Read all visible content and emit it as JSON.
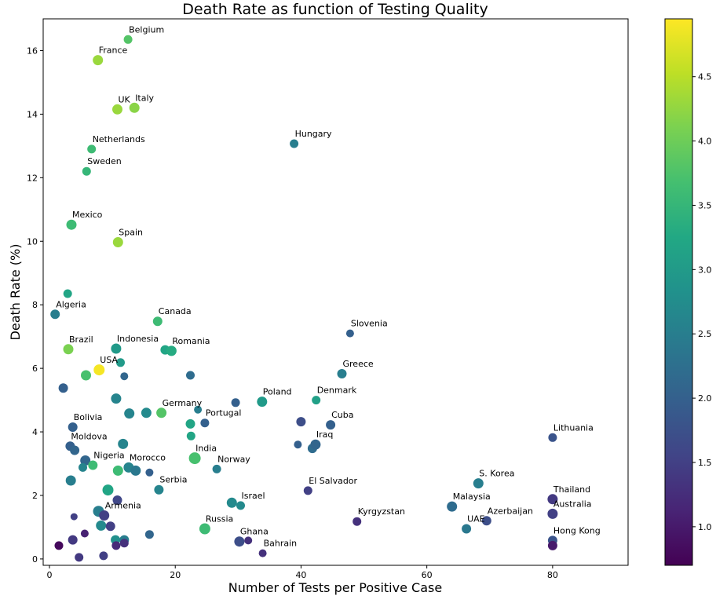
{
  "chart_data": {
    "type": "scatter",
    "title": "Death Rate as function of Testing Quality",
    "xlabel": "Number of Tests per Positive Case",
    "ylabel": "Death Rate (%)",
    "xlim": [
      -1,
      92
    ],
    "ylim": [
      -0.2,
      17
    ],
    "xticks": [
      0,
      20,
      40,
      60,
      80
    ],
    "yticks": [
      0,
      2,
      4,
      6,
      8,
      10,
      12,
      14,
      16
    ],
    "colorbar": {
      "colormap": "viridis",
      "range": [
        0.7,
        4.95
      ],
      "ticks": [
        "1.0",
        "1.5",
        "2.0",
        "2.5",
        "3.0",
        "3.5",
        "4.0",
        "4.5"
      ],
      "tick_values": [
        1.0,
        1.5,
        2.0,
        2.5,
        3.0,
        3.5,
        4.0,
        4.5
      ]
    },
    "grid": false,
    "points": [
      {
        "x": 12.5,
        "y": 16.35,
        "c": 3.8,
        "s": 5.5,
        "label": "Belgium"
      },
      {
        "x": 7.7,
        "y": 15.7,
        "c": 4.3,
        "s": 6.5,
        "label": "France"
      },
      {
        "x": 10.8,
        "y": 14.15,
        "c": 4.3,
        "s": 6.5,
        "label": "UK"
      },
      {
        "x": 13.5,
        "y": 14.2,
        "c": 4.2,
        "s": 6.5,
        "label": "Italy"
      },
      {
        "x": 6.7,
        "y": 12.9,
        "c": 3.6,
        "s": 5.5,
        "label": "Netherlands"
      },
      {
        "x": 5.9,
        "y": 12.2,
        "c": 3.5,
        "s": 5.5,
        "label": "Sweden"
      },
      {
        "x": 38.9,
        "y": 13.07,
        "c": 2.5,
        "s": 5.5,
        "label": "Hungary"
      },
      {
        "x": 3.5,
        "y": 10.52,
        "c": 3.6,
        "s": 6.5,
        "label": "Mexico"
      },
      {
        "x": 10.9,
        "y": 9.97,
        "c": 4.3,
        "s": 6.5,
        "label": "Spain"
      },
      {
        "x": 2.9,
        "y": 8.35,
        "c": 3.2,
        "s": 5.5,
        "label": ""
      },
      {
        "x": 0.9,
        "y": 7.7,
        "c": 2.5,
        "s": 6,
        "label": "Algeria"
      },
      {
        "x": 17.2,
        "y": 7.48,
        "c": 3.6,
        "s": 6,
        "label": "Canada"
      },
      {
        "x": 47.8,
        "y": 7.1,
        "c": 2.0,
        "s": 5,
        "label": "Slovenia"
      },
      {
        "x": 3.0,
        "y": 6.6,
        "c": 4.1,
        "s": 6.5,
        "label": "Brazil"
      },
      {
        "x": 10.6,
        "y": 6.62,
        "c": 3.0,
        "s": 6.5,
        "label": "Indonesia"
      },
      {
        "x": 18.4,
        "y": 6.58,
        "c": 3.2,
        "s": 6,
        "label": ""
      },
      {
        "x": 19.4,
        "y": 6.55,
        "c": 3.3,
        "s": 6.5,
        "label": "Romania"
      },
      {
        "x": 11.3,
        "y": 6.18,
        "c": 3.0,
        "s": 5.5,
        "label": ""
      },
      {
        "x": 7.9,
        "y": 5.95,
        "c": 4.9,
        "s": 7,
        "label": "USA"
      },
      {
        "x": 5.8,
        "y": 5.78,
        "c": 3.7,
        "s": 6.5,
        "label": ""
      },
      {
        "x": 11.9,
        "y": 5.75,
        "c": 2.1,
        "s": 5,
        "label": ""
      },
      {
        "x": 22.4,
        "y": 5.78,
        "c": 2.2,
        "s": 5.5,
        "label": ""
      },
      {
        "x": 46.5,
        "y": 5.83,
        "c": 2.5,
        "s": 6,
        "label": "Greece"
      },
      {
        "x": 2.2,
        "y": 5.38,
        "c": 2.0,
        "s": 6,
        "label": ""
      },
      {
        "x": 10.6,
        "y": 5.05,
        "c": 2.6,
        "s": 6.5,
        "label": ""
      },
      {
        "x": 29.6,
        "y": 4.92,
        "c": 2.0,
        "s": 5.5,
        "label": ""
      },
      {
        "x": 33.8,
        "y": 4.95,
        "c": 3.0,
        "s": 6.5,
        "label": "Poland"
      },
      {
        "x": 42.4,
        "y": 5.0,
        "c": 3.1,
        "s": 5.5,
        "label": "Denmark"
      },
      {
        "x": 23.6,
        "y": 4.7,
        "c": 2.5,
        "s": 5,
        "label": ""
      },
      {
        "x": 12.7,
        "y": 4.58,
        "c": 2.6,
        "s": 6.5,
        "label": ""
      },
      {
        "x": 15.4,
        "y": 4.6,
        "c": 2.7,
        "s": 6.5,
        "label": ""
      },
      {
        "x": 17.8,
        "y": 4.6,
        "c": 3.8,
        "s": 6.5,
        "label": "Germany"
      },
      {
        "x": 22.4,
        "y": 4.25,
        "c": 3.2,
        "s": 6,
        "label": ""
      },
      {
        "x": 24.7,
        "y": 4.28,
        "c": 2.0,
        "s": 5.5,
        "label": "Portugal"
      },
      {
        "x": 3.7,
        "y": 4.15,
        "c": 2.0,
        "s": 6,
        "label": "Bolivia"
      },
      {
        "x": 40.0,
        "y": 4.32,
        "c": 1.7,
        "s": 6,
        "label": ""
      },
      {
        "x": 44.7,
        "y": 4.22,
        "c": 2.0,
        "s": 6,
        "label": "Cuba"
      },
      {
        "x": 22.5,
        "y": 3.87,
        "c": 3.2,
        "s": 5.5,
        "label": ""
      },
      {
        "x": 3.3,
        "y": 3.55,
        "c": 2.0,
        "s": 6,
        "label": "Moldova"
      },
      {
        "x": 4.0,
        "y": 3.42,
        "c": 2.1,
        "s": 6,
        "label": ""
      },
      {
        "x": 11.7,
        "y": 3.62,
        "c": 2.6,
        "s": 6.5,
        "label": ""
      },
      {
        "x": 39.5,
        "y": 3.6,
        "c": 2.0,
        "s": 5,
        "label": ""
      },
      {
        "x": 41.8,
        "y": 3.48,
        "c": 2.2,
        "s": 6,
        "label": ""
      },
      {
        "x": 42.3,
        "y": 3.6,
        "c": 2.1,
        "s": 6.5,
        "label": "Iraq"
      },
      {
        "x": 80.0,
        "y": 3.82,
        "c": 1.8,
        "s": 5.5,
        "label": "Lithuania"
      },
      {
        "x": 5.7,
        "y": 3.1,
        "c": 2.1,
        "s": 6.5,
        "label": ""
      },
      {
        "x": 6.9,
        "y": 2.95,
        "c": 3.6,
        "s": 6,
        "label": "Nigeria"
      },
      {
        "x": 5.3,
        "y": 2.88,
        "c": 2.6,
        "s": 5.5,
        "label": ""
      },
      {
        "x": 23.1,
        "y": 3.17,
        "c": 3.7,
        "s": 7.5,
        "label": "India"
      },
      {
        "x": 12.6,
        "y": 2.88,
        "c": 2.6,
        "s": 6.5,
        "label": "Morocco"
      },
      {
        "x": 13.7,
        "y": 2.78,
        "c": 2.4,
        "s": 6.5,
        "label": ""
      },
      {
        "x": 10.9,
        "y": 2.78,
        "c": 3.6,
        "s": 6.5,
        "label": ""
      },
      {
        "x": 15.9,
        "y": 2.72,
        "c": 2.0,
        "s": 5,
        "label": ""
      },
      {
        "x": 26.6,
        "y": 2.83,
        "c": 2.5,
        "s": 5.5,
        "label": "Norway"
      },
      {
        "x": 3.4,
        "y": 2.47,
        "c": 2.5,
        "s": 6.5,
        "label": ""
      },
      {
        "x": 9.3,
        "y": 2.17,
        "c": 3.2,
        "s": 7,
        "label": ""
      },
      {
        "x": 17.4,
        "y": 2.18,
        "c": 2.6,
        "s": 6,
        "label": "Serbia"
      },
      {
        "x": 68.2,
        "y": 2.38,
        "c": 2.5,
        "s": 6.5,
        "label": "S. Korea"
      },
      {
        "x": 41.1,
        "y": 2.15,
        "c": 1.5,
        "s": 5.5,
        "label": "El Salvador"
      },
      {
        "x": 10.8,
        "y": 1.85,
        "c": 1.6,
        "s": 6,
        "label": ""
      },
      {
        "x": 29.0,
        "y": 1.77,
        "c": 2.7,
        "s": 6.5,
        "label": ""
      },
      {
        "x": 30.4,
        "y": 1.68,
        "c": 2.7,
        "s": 5.5,
        "label": "Israel"
      },
      {
        "x": 80.0,
        "y": 1.88,
        "c": 1.4,
        "s": 6.5,
        "label": "Thailand"
      },
      {
        "x": 64.0,
        "y": 1.65,
        "c": 2.2,
        "s": 6.5,
        "label": "Malaysia"
      },
      {
        "x": 7.8,
        "y": 1.5,
        "c": 2.5,
        "s": 7,
        "label": ""
      },
      {
        "x": 8.7,
        "y": 1.37,
        "c": 1.5,
        "s": 6.5,
        "label": "Armenia"
      },
      {
        "x": 3.9,
        "y": 1.33,
        "c": 1.5,
        "s": 4.5,
        "label": ""
      },
      {
        "x": 80.0,
        "y": 1.42,
        "c": 1.5,
        "s": 6.5,
        "label": "Australia"
      },
      {
        "x": 69.5,
        "y": 1.2,
        "c": 1.7,
        "s": 6,
        "label": "Azerbaijan"
      },
      {
        "x": 48.9,
        "y": 1.18,
        "c": 1.3,
        "s": 5.5,
        "label": "Kyrgyzstan"
      },
      {
        "x": 8.2,
        "y": 1.05,
        "c": 2.7,
        "s": 6.5,
        "label": ""
      },
      {
        "x": 9.7,
        "y": 1.03,
        "c": 1.5,
        "s": 6,
        "label": ""
      },
      {
        "x": 24.7,
        "y": 0.95,
        "c": 3.6,
        "s": 7,
        "label": "Russia"
      },
      {
        "x": 66.3,
        "y": 0.95,
        "c": 2.4,
        "s": 6,
        "label": "UAE"
      },
      {
        "x": 5.6,
        "y": 0.8,
        "c": 1.1,
        "s": 5,
        "label": ""
      },
      {
        "x": 15.9,
        "y": 0.77,
        "c": 2.1,
        "s": 5.5,
        "label": ""
      },
      {
        "x": 3.7,
        "y": 0.6,
        "c": 1.4,
        "s": 6,
        "label": ""
      },
      {
        "x": 10.5,
        "y": 0.6,
        "c": 2.8,
        "s": 6,
        "label": ""
      },
      {
        "x": 11.9,
        "y": 0.6,
        "c": 2.5,
        "s": 6,
        "label": ""
      },
      {
        "x": 30.2,
        "y": 0.55,
        "c": 1.7,
        "s": 6.5,
        "label": "Ghana"
      },
      {
        "x": 31.6,
        "y": 0.58,
        "c": 1.3,
        "s": 5,
        "label": ""
      },
      {
        "x": 80.0,
        "y": 0.58,
        "c": 1.8,
        "s": 6,
        "label": "Hong Kong"
      },
      {
        "x": 11.9,
        "y": 0.5,
        "c": 1.3,
        "s": 5.5,
        "label": ""
      },
      {
        "x": 1.5,
        "y": 0.42,
        "c": 0.8,
        "s": 5.5,
        "label": ""
      },
      {
        "x": 10.6,
        "y": 0.42,
        "c": 1.2,
        "s": 5.5,
        "label": ""
      },
      {
        "x": 80.0,
        "y": 0.42,
        "c": 1.0,
        "s": 6,
        "label": ""
      },
      {
        "x": 33.9,
        "y": 0.18,
        "c": 1.3,
        "s": 5,
        "label": "Bahrain"
      },
      {
        "x": 4.7,
        "y": 0.05,
        "c": 1.4,
        "s": 5.5,
        "label": ""
      },
      {
        "x": 8.6,
        "y": 0.1,
        "c": 1.5,
        "s": 5.5,
        "label": ""
      }
    ]
  }
}
